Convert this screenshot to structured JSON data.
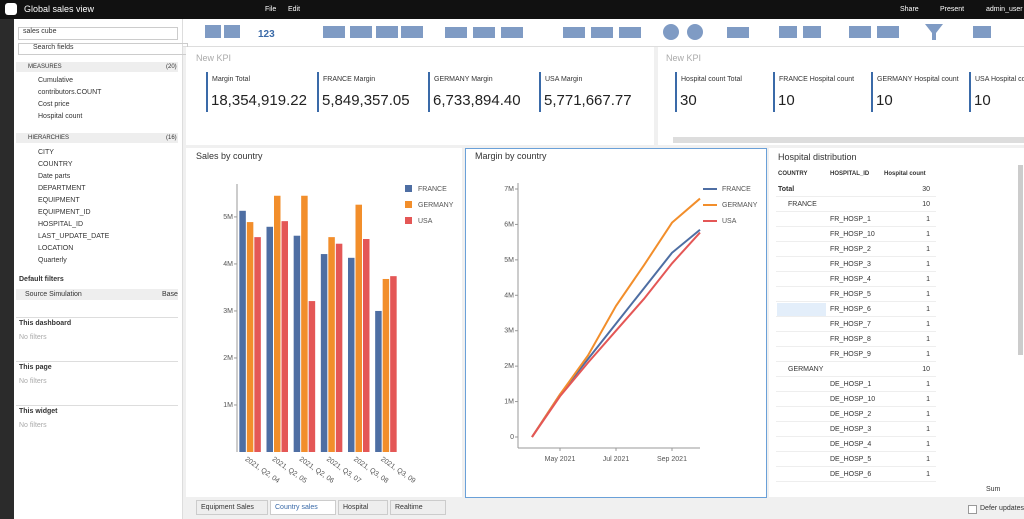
{
  "header": {
    "app_title": "Global sales view",
    "menu": [
      "File",
      "Edit"
    ],
    "actions": [
      "Share",
      "Present",
      "admin_user"
    ]
  },
  "toolbar": {
    "number_icon": "123"
  },
  "sidebar": {
    "cube": "sales cube",
    "search": "Search fields",
    "measures_label": "MEASURES",
    "measures_count": "(20)",
    "measures": [
      "Cumulative",
      "contributors.COUNT",
      "Cost price",
      "Hospital count"
    ],
    "hierarchies_label": "HIERARCHIES",
    "hierarchies_count": "(16)",
    "hierarchies": [
      "CITY",
      "COUNTRY",
      "Date parts",
      "DEPARTMENT",
      "EQUIPMENT",
      "EQUIPMENT_ID",
      "HOSPITAL_ID",
      "LAST_UPDATE_DATE",
      "LOCATION",
      "Quarterly"
    ],
    "default_filters": "Default filters",
    "source_label": "Source Simulation",
    "source_value": "Base",
    "sections": [
      {
        "title": "This dashboard",
        "empty": "No filters"
      },
      {
        "title": "This page",
        "empty": "No filters"
      },
      {
        "title": "This widget",
        "empty": "No filters"
      }
    ]
  },
  "kpi_left": {
    "title": "New KPI",
    "items": [
      {
        "label": "Margin Total",
        "value": "18,354,919.22"
      },
      {
        "label": "FRANCE Margin",
        "value": "5,849,357.05"
      },
      {
        "label": "GERMANY Margin",
        "value": "6,733,894.40"
      },
      {
        "label": "USA Margin",
        "value": "5,771,667.77"
      }
    ]
  },
  "kpi_right": {
    "title": "New KPI",
    "items": [
      {
        "label": "Hospital count Total",
        "value": "30"
      },
      {
        "label": "FRANCE Hospital count",
        "value": "10"
      },
      {
        "label": "GERMANY Hospital count",
        "value": "10"
      },
      {
        "label": "USA Hospital count",
        "value": "10"
      }
    ]
  },
  "chart_data": [
    {
      "type": "bar",
      "title": "Sales by country",
      "categories": [
        "2021, Q2, 04",
        "2021, Q2, 05",
        "2021, Q2, 06",
        "2021, Q3, 07",
        "2021, Q3, 08",
        "2021, Q3, 09"
      ],
      "series": [
        {
          "name": "FRANCE",
          "color": "#4e6ea3",
          "values": [
            5130000,
            4790000,
            4600000,
            4210000,
            4130000,
            3000000
          ]
        },
        {
          "name": "GERMANY",
          "color": "#f28e2b",
          "values": [
            4890000,
            5450000,
            5450000,
            4570000,
            5260000,
            3680000
          ]
        },
        {
          "name": "USA",
          "color": "#e45756",
          "values": [
            4570000,
            4910000,
            3210000,
            4430000,
            4530000,
            3740000
          ]
        }
      ],
      "ylim": [
        0,
        5700000
      ],
      "yticks": [
        {
          "value": 1000000,
          "label": "1M"
        },
        {
          "value": 2000000,
          "label": "2M"
        },
        {
          "value": 3000000,
          "label": "3M"
        },
        {
          "value": 4000000,
          "label": "4M"
        },
        {
          "value": 5000000,
          "label": "5M"
        }
      ],
      "legend": "right"
    },
    {
      "type": "line",
      "title": "Margin by country",
      "x": [
        "2021-04",
        "2021-05",
        "2021-06",
        "2021-07",
        "2021-08",
        "2021-09",
        "2021-10"
      ],
      "series": [
        {
          "name": "FRANCE",
          "color": "#4e6ea3",
          "values": [
            0,
            1200000,
            2200000,
            3200000,
            4200000,
            5200000,
            5850000
          ]
        },
        {
          "name": "GERMANY",
          "color": "#f28e2b",
          "values": [
            0,
            1200000,
            2300000,
            3700000,
            4850000,
            6050000,
            6730000
          ]
        },
        {
          "name": "USA",
          "color": "#e45756",
          "values": [
            0,
            1150000,
            2100000,
            3000000,
            3900000,
            4900000,
            5770000
          ]
        }
      ],
      "xlim": [
        "2021-04",
        "2021-10"
      ],
      "xticks": [
        {
          "value": "2021-05",
          "label": "May 2021"
        },
        {
          "value": "2021-07",
          "label": "Jul 2021"
        },
        {
          "value": "2021-09",
          "label": "Sep 2021"
        }
      ],
      "ylim": [
        0,
        7000000
      ],
      "yticks": [
        0,
        {
          "value": 1000000,
          "label": "1M"
        },
        {
          "value": 2000000,
          "label": "2M"
        },
        {
          "value": 3000000,
          "label": "3M"
        },
        {
          "value": 4000000,
          "label": "4M"
        },
        {
          "value": 5000000,
          "label": "5M"
        },
        {
          "value": 6000000,
          "label": "6M"
        },
        {
          "value": 7000000,
          "label": "7M"
        }
      ],
      "legend": "right"
    }
  ],
  "table": {
    "title": "Hospital distribution",
    "columns": [
      "COUNTRY",
      "HOSPITAL_ID",
      "Hospital count"
    ],
    "rows": [
      {
        "country": "Total",
        "count": 30
      },
      {
        "country": "FRANCE",
        "count": 10
      },
      {
        "hospital": "FR_HOSP_1",
        "count": 1
      },
      {
        "hospital": "FR_HOSP_10",
        "count": 1
      },
      {
        "hospital": "FR_HOSP_2",
        "count": 1
      },
      {
        "hospital": "FR_HOSP_3",
        "count": 1
      },
      {
        "hospital": "FR_HOSP_4",
        "count": 1
      },
      {
        "hospital": "FR_HOSP_5",
        "count": 1
      },
      {
        "hospital": "FR_HOSP_6",
        "count": 1
      },
      {
        "hospital": "FR_HOSP_7",
        "count": 1
      },
      {
        "hospital": "FR_HOSP_8",
        "count": 1
      },
      {
        "hospital": "FR_HOSP_9",
        "count": 1
      },
      {
        "country": "GERMANY",
        "count": 10
      },
      {
        "hospital": "DE_HOSP_1",
        "count": 1
      },
      {
        "hospital": "DE_HOSP_10",
        "count": 1
      },
      {
        "hospital": "DE_HOSP_2",
        "count": 1
      },
      {
        "hospital": "DE_HOSP_3",
        "count": 1
      },
      {
        "hospital": "DE_HOSP_4",
        "count": 1
      },
      {
        "hospital": "DE_HOSP_5",
        "count": 1
      },
      {
        "hospital": "DE_HOSP_6",
        "count": 1
      }
    ],
    "aggregation": "Sum",
    "defer": "Defer updates"
  },
  "tabs": [
    "Equipment Sales",
    "Country sales",
    "Hospital",
    "Realtime"
  ]
}
